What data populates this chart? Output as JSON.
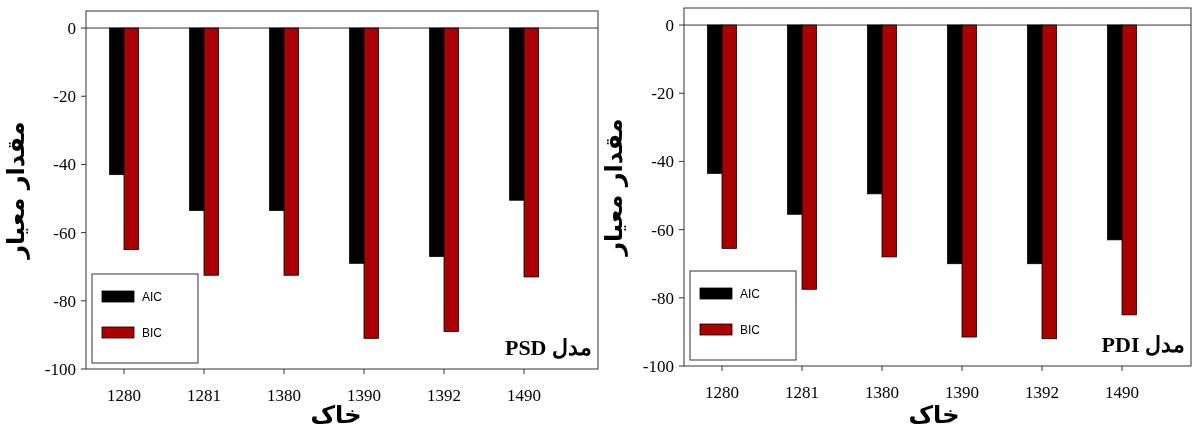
{
  "chart_data": [
    {
      "type": "bar",
      "ylabel": "مقدار معیار",
      "xlabel": "خاک",
      "annotations": [
        "مدل PSD"
      ],
      "categories": [
        "1280",
        "1281",
        "1380",
        "1390",
        "1392",
        "1490"
      ],
      "series": [
        {
          "name": "AIC",
          "color": "#000000",
          "values": [
            -43,
            -53.5,
            -53.5,
            -69,
            -67,
            -50.5
          ]
        },
        {
          "name": "BIC",
          "color": "#aa0000",
          "values": [
            -65,
            -72.5,
            -72.5,
            -91,
            -89,
            -73
          ]
        }
      ],
      "ylim": [
        -100,
        5
      ],
      "yticks": [
        -100,
        -80,
        -60,
        -40,
        -20,
        0
      ],
      "ref_lines": [
        {
          "axis": "y",
          "value": 0
        }
      ],
      "legend": "bottom left",
      "grid": false
    },
    {
      "type": "bar",
      "ylabel": "مقدار معیار",
      "xlabel": "خاک",
      "annotations": [
        "مدل PDI"
      ],
      "categories": [
        "1280",
        "1281",
        "1380",
        "1390",
        "1392",
        "1490"
      ],
      "series": [
        {
          "name": "AIC",
          "color": "#000000",
          "values": [
            -43.5,
            -55.5,
            -49.5,
            -70,
            -70,
            -63
          ]
        },
        {
          "name": "BIC",
          "color": "#aa0000",
          "values": [
            -65.5,
            -77.5,
            -68,
            -91.5,
            -92,
            -85
          ]
        }
      ],
      "ylim": [
        -100,
        5
      ],
      "yticks": [
        -100,
        -80,
        -60,
        -40,
        -20,
        0
      ],
      "ref_lines": [
        {
          "axis": "y",
          "value": 0
        }
      ],
      "legend": "bottom left",
      "grid": false
    }
  ]
}
